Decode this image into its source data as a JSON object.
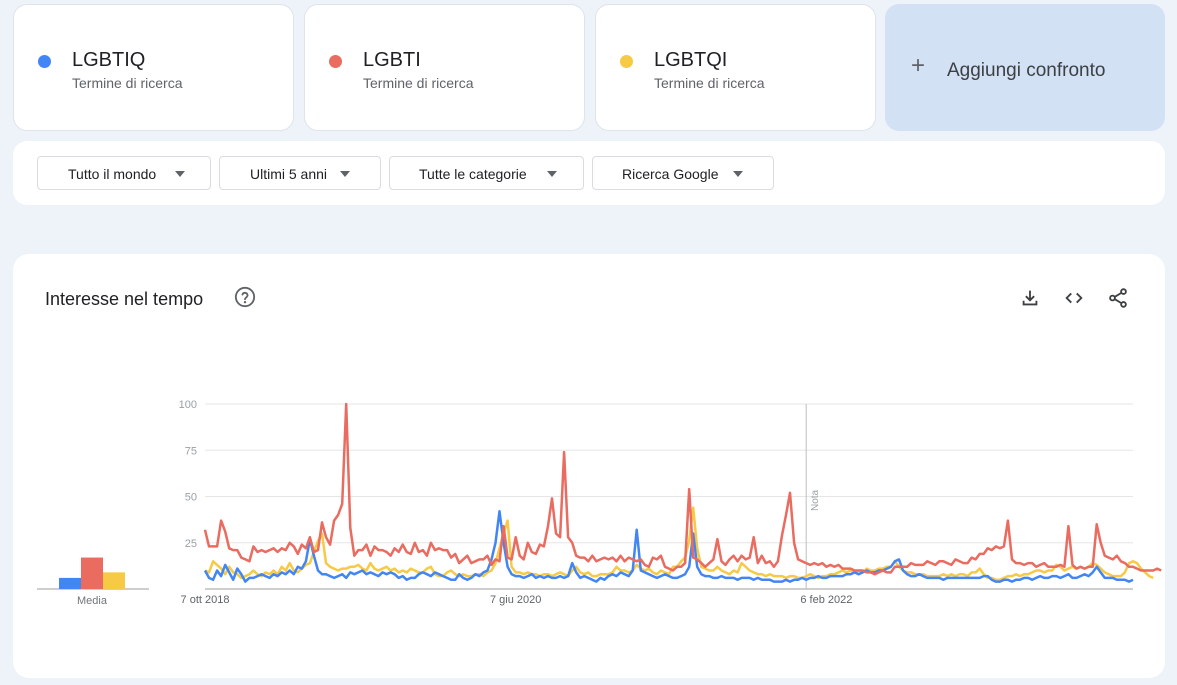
{
  "terms": [
    {
      "name": "LGBTIQ",
      "sub": "Termine di ricerca",
      "color": "#4285f4"
    },
    {
      "name": "LGBTI",
      "sub": "Termine di ricerca",
      "color": "#ea6b5f"
    },
    {
      "name": "LGBTQI",
      "sub": "Termine di ricerca",
      "color": "#f7ca45"
    }
  ],
  "add_compare": {
    "icon": "plus-icon",
    "label": "Aggiungi confronto"
  },
  "filters": [
    {
      "label": "Tutto il mondo"
    },
    {
      "label": "Ultimi 5 anni"
    },
    {
      "label": "Tutte le categorie"
    },
    {
      "label": "Ricerca Google"
    }
  ],
  "chart_section": {
    "title": "Interesse nel tempo",
    "icons": [
      "help-icon",
      "download-icon",
      "embed-icon",
      "share-icon"
    ]
  },
  "chart_data": {
    "type": "line",
    "x_tick_labels": [
      "7 ott 2018",
      "7 giu 2020",
      "6 feb 2022"
    ],
    "y_ticks": [
      25,
      50,
      75,
      100
    ],
    "ylim": [
      0,
      100
    ],
    "grid": true,
    "note_label": "Nota",
    "average_label": "Media",
    "averages": [
      6,
      17,
      9
    ],
    "series": [
      {
        "name": "LGBTIQ",
        "color": "#4285f4",
        "values": [
          10,
          6,
          5,
          10,
          7,
          13,
          9,
          5,
          11,
          8,
          4,
          6,
          6,
          7,
          8,
          7,
          6,
          8,
          7,
          9,
          8,
          10,
          8,
          12,
          11,
          15,
          27,
          18,
          10,
          8,
          8,
          7,
          6,
          7,
          8,
          6,
          9,
          8,
          9,
          10,
          8,
          9,
          8,
          7,
          9,
          8,
          9,
          8,
          6,
          7,
          5,
          6,
          6,
          8,
          9,
          8,
          7,
          9,
          8,
          7,
          6,
          5,
          5,
          8,
          6,
          5,
          6,
          8,
          7,
          9,
          10,
          16,
          25,
          42,
          25,
          12,
          8,
          7,
          7,
          6,
          7,
          8,
          6,
          7,
          6,
          7,
          6,
          6,
          7,
          6,
          7,
          14,
          9,
          6,
          7,
          6,
          5,
          4,
          6,
          5,
          7,
          8,
          7,
          9,
          8,
          7,
          10,
          32,
          10,
          9,
          8,
          7,
          6,
          7,
          8,
          7,
          6,
          6,
          7,
          8,
          12,
          30,
          12,
          8,
          7,
          7,
          6,
          6,
          7,
          6,
          6,
          6,
          5,
          6,
          6,
          6,
          5,
          6,
          5,
          5,
          5,
          4,
          4,
          4,
          5,
          4,
          5,
          5,
          6,
          5,
          6,
          6,
          7,
          6,
          6,
          7,
          7,
          7,
          7,
          8,
          8,
          9,
          8,
          9,
          10,
          9,
          9,
          10,
          10,
          11,
          12,
          15,
          16,
          10,
          8,
          7,
          7,
          8,
          7,
          6,
          6,
          6,
          6,
          5,
          6,
          6,
          6,
          6,
          6,
          6,
          6,
          6,
          6,
          7,
          7,
          5,
          4,
          4,
          5,
          5,
          4,
          5,
          5,
          6,
          6,
          5,
          6,
          7,
          6,
          6,
          7,
          7,
          6,
          7,
          8,
          6,
          6,
          7,
          8,
          7,
          9,
          12,
          9,
          6,
          6,
          6,
          5,
          5,
          5,
          4,
          5
        ]
      },
      {
        "name": "LGBTI",
        "color": "#ea6b5f",
        "values": [
          32,
          23,
          23,
          23,
          37,
          31,
          22,
          21,
          21,
          17,
          16,
          15,
          23,
          20,
          21,
          20,
          21,
          22,
          20,
          22,
          21,
          25,
          23,
          19,
          24,
          22,
          28,
          20,
          21,
          36,
          28,
          24,
          37,
          40,
          46,
          100,
          33,
          18,
          21,
          21,
          24,
          18,
          23,
          21,
          21,
          20,
          18,
          22,
          20,
          24,
          20,
          19,
          25,
          20,
          21,
          18,
          25,
          21,
          22,
          21,
          21,
          17,
          19,
          14,
          16,
          18,
          14,
          15,
          16,
          16,
          18,
          13,
          16,
          15,
          34,
          17,
          16,
          28,
          18,
          16,
          25,
          20,
          19,
          24,
          23,
          34,
          49,
          30,
          28,
          74,
          28,
          25,
          18,
          17,
          17,
          15,
          18,
          15,
          16,
          17,
          16,
          17,
          15,
          18,
          15,
          17,
          16,
          15,
          16,
          13,
          12,
          17,
          16,
          18,
          12,
          11,
          10,
          12,
          12,
          14,
          54,
          17,
          16,
          14,
          12,
          14,
          16,
          27,
          15,
          13,
          16,
          18,
          15,
          18,
          16,
          17,
          28,
          14,
          18,
          14,
          15,
          12,
          15,
          29,
          40,
          52,
          25,
          16,
          15,
          14,
          13,
          14,
          13,
          14,
          12,
          13,
          12,
          13,
          11,
          11,
          11,
          10,
          10,
          10,
          9,
          9,
          8,
          9,
          10,
          9,
          9,
          12,
          12,
          12,
          12,
          14,
          13,
          13,
          13,
          15,
          14,
          13,
          15,
          15,
          14,
          13,
          16,
          15,
          14,
          14,
          17,
          16,
          19,
          19,
          22,
          21,
          23,
          22,
          23,
          37,
          16,
          14,
          14,
          13,
          14,
          14,
          12,
          13,
          14,
          12,
          12,
          12,
          13,
          12,
          34,
          13,
          11,
          12,
          11,
          12,
          12,
          35,
          25,
          18,
          17,
          16,
          18,
          15,
          14,
          12,
          12,
          11,
          10,
          10,
          10,
          10,
          11,
          10
        ]
      },
      {
        "name": "LGBTQI",
        "color": "#f7ca45",
        "values": [
          10,
          9,
          15,
          13,
          11,
          8,
          12,
          9,
          8,
          6,
          7,
          8,
          10,
          8,
          7,
          9,
          8,
          10,
          8,
          12,
          10,
          14,
          10,
          9,
          11,
          13,
          14,
          20,
          26,
          30,
          14,
          12,
          11,
          10,
          11,
          11,
          12,
          12,
          13,
          11,
          10,
          14,
          11,
          10,
          11,
          12,
          10,
          11,
          9,
          10,
          9,
          11,
          10,
          9,
          9,
          11,
          12,
          8,
          7,
          7,
          9,
          10,
          8,
          7,
          8,
          7,
          7,
          8,
          8,
          7,
          9,
          10,
          14,
          22,
          30,
          37,
          12,
          9,
          9,
          8,
          9,
          8,
          8,
          7,
          8,
          8,
          7,
          8,
          9,
          8,
          7,
          10,
          12,
          9,
          8,
          9,
          7,
          7,
          8,
          8,
          8,
          9,
          12,
          10,
          10,
          9,
          10,
          13,
          11,
          10,
          11,
          9,
          8,
          10,
          9,
          8,
          12,
          12,
          15,
          17,
          26,
          44,
          22,
          12,
          11,
          10,
          10,
          12,
          10,
          9,
          8,
          10,
          9,
          14,
          12,
          10,
          9,
          8,
          8,
          7,
          8,
          7,
          7,
          7,
          6,
          7,
          7,
          6,
          6,
          7,
          8,
          7,
          6,
          7,
          7,
          8,
          8,
          9,
          10,
          9,
          10,
          9,
          10,
          9,
          11,
          10,
          10,
          11,
          11,
          12,
          12,
          15,
          12,
          10,
          9,
          9,
          8,
          8,
          8,
          7,
          7,
          7,
          7,
          8,
          7,
          8,
          7,
          8,
          8,
          7,
          9,
          9,
          11,
          8,
          6,
          6,
          5,
          5,
          6,
          7,
          7,
          8,
          7,
          8,
          8,
          9,
          10,
          10,
          9,
          10,
          10,
          13,
          12,
          10,
          11,
          12,
          11,
          12,
          11,
          12,
          14,
          13,
          11,
          9,
          8,
          7,
          7,
          7,
          9,
          14,
          15,
          14,
          11,
          9,
          7,
          6
        ]
      }
    ]
  }
}
